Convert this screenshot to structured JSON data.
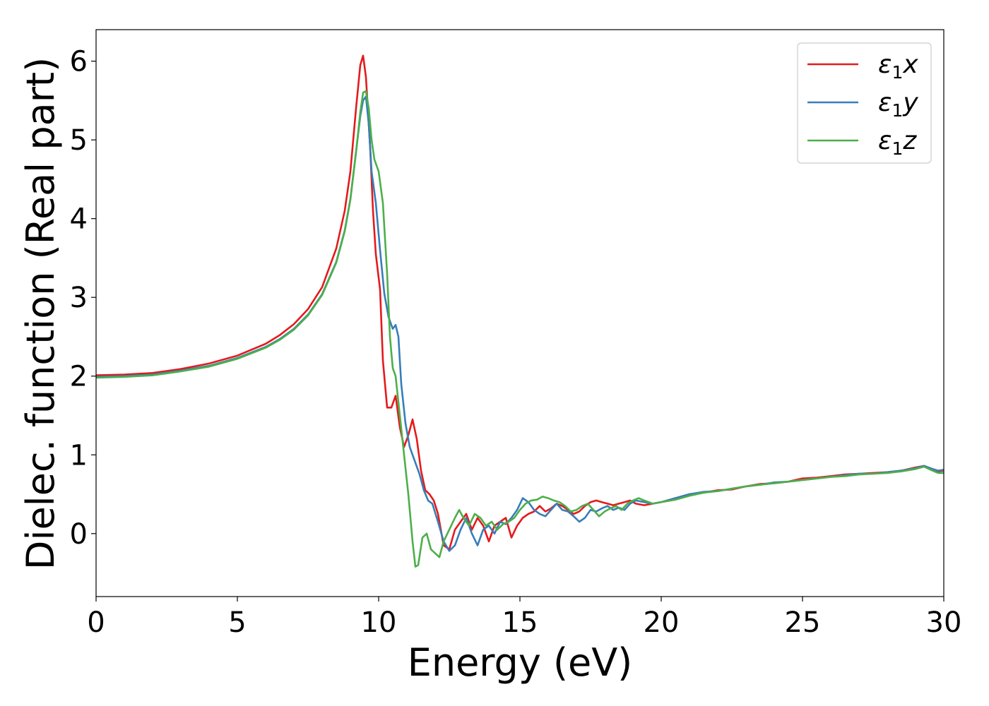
{
  "chart_data": {
    "type": "line",
    "title": "",
    "xlabel": "Energy (eV)",
    "ylabel": "Dielec. function (Real part)",
    "xlim": [
      0,
      30
    ],
    "ylim": [
      -0.8,
      6.4
    ],
    "xticks": [
      0,
      5,
      10,
      15,
      20,
      25,
      30
    ],
    "yticks": [
      0,
      1,
      2,
      3,
      4,
      5,
      6
    ],
    "grid": false,
    "legend_position": "top-right",
    "series": [
      {
        "name": "ε₁x",
        "legend_base": "ε",
        "legend_sub": "1",
        "legend_tail": "x",
        "color": "#e41a1c",
        "points": [
          [
            0,
            2.01
          ],
          [
            1,
            2.02
          ],
          [
            2,
            2.04
          ],
          [
            3,
            2.09
          ],
          [
            4,
            2.16
          ],
          [
            5,
            2.26
          ],
          [
            6,
            2.41
          ],
          [
            6.5,
            2.52
          ],
          [
            7,
            2.66
          ],
          [
            7.5,
            2.85
          ],
          [
            8,
            3.13
          ],
          [
            8.5,
            3.62
          ],
          [
            8.8,
            4.1
          ],
          [
            9,
            4.6
          ],
          [
            9.2,
            5.4
          ],
          [
            9.35,
            5.95
          ],
          [
            9.45,
            6.07
          ],
          [
            9.55,
            5.8
          ],
          [
            9.7,
            4.9
          ],
          [
            9.8,
            4.1
          ],
          [
            9.9,
            3.55
          ],
          [
            10.05,
            3.1
          ],
          [
            10.15,
            2.2
          ],
          [
            10.3,
            1.6
          ],
          [
            10.45,
            1.6
          ],
          [
            10.6,
            1.75
          ],
          [
            10.75,
            1.35
          ],
          [
            10.9,
            1.1
          ],
          [
            11.05,
            1.25
          ],
          [
            11.2,
            1.45
          ],
          [
            11.35,
            1.2
          ],
          [
            11.5,
            0.8
          ],
          [
            11.65,
            0.55
          ],
          [
            11.8,
            0.5
          ],
          [
            11.95,
            0.42
          ],
          [
            12.1,
            0.25
          ],
          [
            12.3,
            -0.15
          ],
          [
            12.5,
            -0.2
          ],
          [
            12.7,
            0.05
          ],
          [
            12.9,
            0.15
          ],
          [
            13.1,
            0.25
          ],
          [
            13.3,
            0.05
          ],
          [
            13.5,
            0.2
          ],
          [
            13.7,
            0.1
          ],
          [
            13.9,
            -0.1
          ],
          [
            14.1,
            0.1
          ],
          [
            14.3,
            0.15
          ],
          [
            14.5,
            0.2
          ],
          [
            14.7,
            -0.05
          ],
          [
            14.9,
            0.1
          ],
          [
            15.1,
            0.2
          ],
          [
            15.3,
            0.25
          ],
          [
            15.5,
            0.28
          ],
          [
            15.7,
            0.35
          ],
          [
            15.9,
            0.28
          ],
          [
            16.1,
            0.32
          ],
          [
            16.3,
            0.38
          ],
          [
            16.5,
            0.35
          ],
          [
            16.7,
            0.3
          ],
          [
            16.9,
            0.25
          ],
          [
            17.1,
            0.28
          ],
          [
            17.3,
            0.35
          ],
          [
            17.5,
            0.4
          ],
          [
            17.7,
            0.42
          ],
          [
            17.9,
            0.4
          ],
          [
            18.1,
            0.38
          ],
          [
            18.3,
            0.36
          ],
          [
            18.5,
            0.38
          ],
          [
            18.7,
            0.4
          ],
          [
            18.9,
            0.42
          ],
          [
            19.1,
            0.38
          ],
          [
            19.4,
            0.36
          ],
          [
            19.7,
            0.38
          ],
          [
            20,
            0.4
          ],
          [
            20.5,
            0.45
          ],
          [
            21,
            0.5
          ],
          [
            21.5,
            0.52
          ],
          [
            22,
            0.55
          ],
          [
            22.5,
            0.56
          ],
          [
            23,
            0.6
          ],
          [
            23.5,
            0.63
          ],
          [
            24,
            0.64
          ],
          [
            24.5,
            0.66
          ],
          [
            25,
            0.7
          ],
          [
            25.5,
            0.71
          ],
          [
            26,
            0.73
          ],
          [
            26.5,
            0.75
          ],
          [
            27,
            0.76
          ],
          [
            27.5,
            0.77
          ],
          [
            28,
            0.78
          ],
          [
            28.5,
            0.8
          ],
          [
            29,
            0.84
          ],
          [
            29.3,
            0.86
          ],
          [
            29.6,
            0.82
          ],
          [
            29.8,
            0.79
          ],
          [
            30,
            0.8
          ]
        ]
      },
      {
        "name": "ε₁y",
        "legend_base": "ε",
        "legend_sub": "1",
        "legend_tail": "y",
        "color": "#377eb8",
        "points": [
          [
            0,
            1.99
          ],
          [
            1,
            2.0
          ],
          [
            2,
            2.02
          ],
          [
            3,
            2.07
          ],
          [
            4,
            2.13
          ],
          [
            5,
            2.23
          ],
          [
            6,
            2.37
          ],
          [
            6.5,
            2.47
          ],
          [
            7,
            2.6
          ],
          [
            7.5,
            2.78
          ],
          [
            8,
            3.04
          ],
          [
            8.5,
            3.45
          ],
          [
            8.8,
            3.85
          ],
          [
            9,
            4.25
          ],
          [
            9.2,
            4.85
          ],
          [
            9.35,
            5.3
          ],
          [
            9.45,
            5.5
          ],
          [
            9.55,
            5.55
          ],
          [
            9.65,
            5.2
          ],
          [
            9.75,
            4.6
          ],
          [
            9.9,
            4.2
          ],
          [
            10.05,
            3.6
          ],
          [
            10.2,
            3.05
          ],
          [
            10.35,
            2.75
          ],
          [
            10.5,
            2.6
          ],
          [
            10.6,
            2.65
          ],
          [
            10.7,
            2.5
          ],
          [
            10.8,
            1.9
          ],
          [
            10.95,
            1.4
          ],
          [
            11.1,
            1.1
          ],
          [
            11.3,
            0.9
          ],
          [
            11.45,
            0.75
          ],
          [
            11.6,
            0.55
          ],
          [
            11.75,
            0.42
          ],
          [
            11.9,
            0.38
          ],
          [
            12.1,
            0.15
          ],
          [
            12.3,
            -0.1
          ],
          [
            12.5,
            -0.22
          ],
          [
            12.7,
            -0.15
          ],
          [
            12.9,
            0.05
          ],
          [
            13.1,
            0.2
          ],
          [
            13.3,
            0.0
          ],
          [
            13.5,
            -0.15
          ],
          [
            13.7,
            0.05
          ],
          [
            13.9,
            0.1
          ],
          [
            14.1,
            0.0
          ],
          [
            14.3,
            0.15
          ],
          [
            14.5,
            0.12
          ],
          [
            14.7,
            0.2
          ],
          [
            14.9,
            0.3
          ],
          [
            15.1,
            0.45
          ],
          [
            15.3,
            0.4
          ],
          [
            15.5,
            0.3
          ],
          [
            15.7,
            0.25
          ],
          [
            15.9,
            0.22
          ],
          [
            16.1,
            0.3
          ],
          [
            16.3,
            0.38
          ],
          [
            16.5,
            0.3
          ],
          [
            16.7,
            0.28
          ],
          [
            16.9,
            0.22
          ],
          [
            17.1,
            0.15
          ],
          [
            17.3,
            0.2
          ],
          [
            17.5,
            0.3
          ],
          [
            17.7,
            0.28
          ],
          [
            17.9,
            0.32
          ],
          [
            18.1,
            0.35
          ],
          [
            18.3,
            0.3
          ],
          [
            18.5,
            0.33
          ],
          [
            18.7,
            0.3
          ],
          [
            18.9,
            0.38
          ],
          [
            19.1,
            0.42
          ],
          [
            19.4,
            0.4
          ],
          [
            19.7,
            0.38
          ],
          [
            20,
            0.4
          ],
          [
            20.5,
            0.45
          ],
          [
            21,
            0.5
          ],
          [
            21.5,
            0.53
          ],
          [
            22,
            0.54
          ],
          [
            22.5,
            0.57
          ],
          [
            23,
            0.6
          ],
          [
            23.5,
            0.62
          ],
          [
            24,
            0.65
          ],
          [
            24.5,
            0.66
          ],
          [
            25,
            0.68
          ],
          [
            25.5,
            0.7
          ],
          [
            26,
            0.72
          ],
          [
            26.5,
            0.74
          ],
          [
            27,
            0.76
          ],
          [
            27.5,
            0.76
          ],
          [
            28,
            0.78
          ],
          [
            28.5,
            0.8
          ],
          [
            29,
            0.83
          ],
          [
            29.3,
            0.86
          ],
          [
            29.6,
            0.82
          ],
          [
            29.8,
            0.8
          ],
          [
            30,
            0.81
          ]
        ]
      },
      {
        "name": "ε₁z",
        "legend_base": "ε",
        "legend_sub": "1",
        "legend_tail": "z",
        "color": "#4daf4a",
        "points": [
          [
            0,
            1.98
          ],
          [
            1,
            1.99
          ],
          [
            2,
            2.01
          ],
          [
            3,
            2.06
          ],
          [
            4,
            2.12
          ],
          [
            5,
            2.22
          ],
          [
            6,
            2.36
          ],
          [
            6.5,
            2.46
          ],
          [
            7,
            2.59
          ],
          [
            7.5,
            2.77
          ],
          [
            8,
            3.03
          ],
          [
            8.5,
            3.44
          ],
          [
            8.8,
            3.84
          ],
          [
            9,
            4.24
          ],
          [
            9.2,
            4.84
          ],
          [
            9.35,
            5.35
          ],
          [
            9.45,
            5.6
          ],
          [
            9.55,
            5.62
          ],
          [
            9.65,
            5.4
          ],
          [
            9.75,
            5.0
          ],
          [
            9.85,
            4.75
          ],
          [
            10.0,
            4.6
          ],
          [
            10.15,
            4.2
          ],
          [
            10.3,
            3.3
          ],
          [
            10.4,
            2.5
          ],
          [
            10.5,
            2.1
          ],
          [
            10.6,
            2.0
          ],
          [
            10.75,
            1.5
          ],
          [
            10.9,
            1.0
          ],
          [
            11.05,
            0.5
          ],
          [
            11.2,
            -0.1
          ],
          [
            11.3,
            -0.42
          ],
          [
            11.4,
            -0.4
          ],
          [
            11.55,
            -0.05
          ],
          [
            11.7,
            0.0
          ],
          [
            11.85,
            -0.2
          ],
          [
            12.0,
            -0.25
          ],
          [
            12.15,
            -0.3
          ],
          [
            12.3,
            -0.1
          ],
          [
            12.5,
            0.05
          ],
          [
            12.7,
            0.2
          ],
          [
            12.85,
            0.3
          ],
          [
            13.0,
            0.2
          ],
          [
            13.2,
            0.1
          ],
          [
            13.4,
            0.25
          ],
          [
            13.6,
            0.2
          ],
          [
            13.8,
            0.1
          ],
          [
            14.0,
            0.15
          ],
          [
            14.2,
            0.05
          ],
          [
            14.4,
            0.12
          ],
          [
            14.6,
            0.15
          ],
          [
            14.8,
            0.2
          ],
          [
            15.0,
            0.3
          ],
          [
            15.2,
            0.38
          ],
          [
            15.4,
            0.42
          ],
          [
            15.6,
            0.43
          ],
          [
            15.8,
            0.47
          ],
          [
            16.0,
            0.45
          ],
          [
            16.2,
            0.42
          ],
          [
            16.4,
            0.4
          ],
          [
            16.6,
            0.35
          ],
          [
            16.8,
            0.28
          ],
          [
            17.0,
            0.3
          ],
          [
            17.2,
            0.35
          ],
          [
            17.4,
            0.38
          ],
          [
            17.6,
            0.3
          ],
          [
            17.8,
            0.22
          ],
          [
            18.0,
            0.28
          ],
          [
            18.2,
            0.32
          ],
          [
            18.4,
            0.35
          ],
          [
            18.6,
            0.3
          ],
          [
            18.8,
            0.38
          ],
          [
            19.0,
            0.42
          ],
          [
            19.2,
            0.45
          ],
          [
            19.4,
            0.42
          ],
          [
            19.7,
            0.38
          ],
          [
            20,
            0.4
          ],
          [
            20.5,
            0.43
          ],
          [
            21,
            0.48
          ],
          [
            21.5,
            0.52
          ],
          [
            22,
            0.54
          ],
          [
            22.5,
            0.57
          ],
          [
            23,
            0.6
          ],
          [
            23.5,
            0.62
          ],
          [
            24,
            0.64
          ],
          [
            24.5,
            0.66
          ],
          [
            25,
            0.68
          ],
          [
            25.5,
            0.7
          ],
          [
            26,
            0.72
          ],
          [
            26.5,
            0.73
          ],
          [
            27,
            0.75
          ],
          [
            27.5,
            0.76
          ],
          [
            28,
            0.77
          ],
          [
            28.5,
            0.79
          ],
          [
            29,
            0.82
          ],
          [
            29.3,
            0.85
          ],
          [
            29.6,
            0.8
          ],
          [
            29.8,
            0.77
          ],
          [
            30,
            0.77
          ]
        ]
      }
    ]
  }
}
